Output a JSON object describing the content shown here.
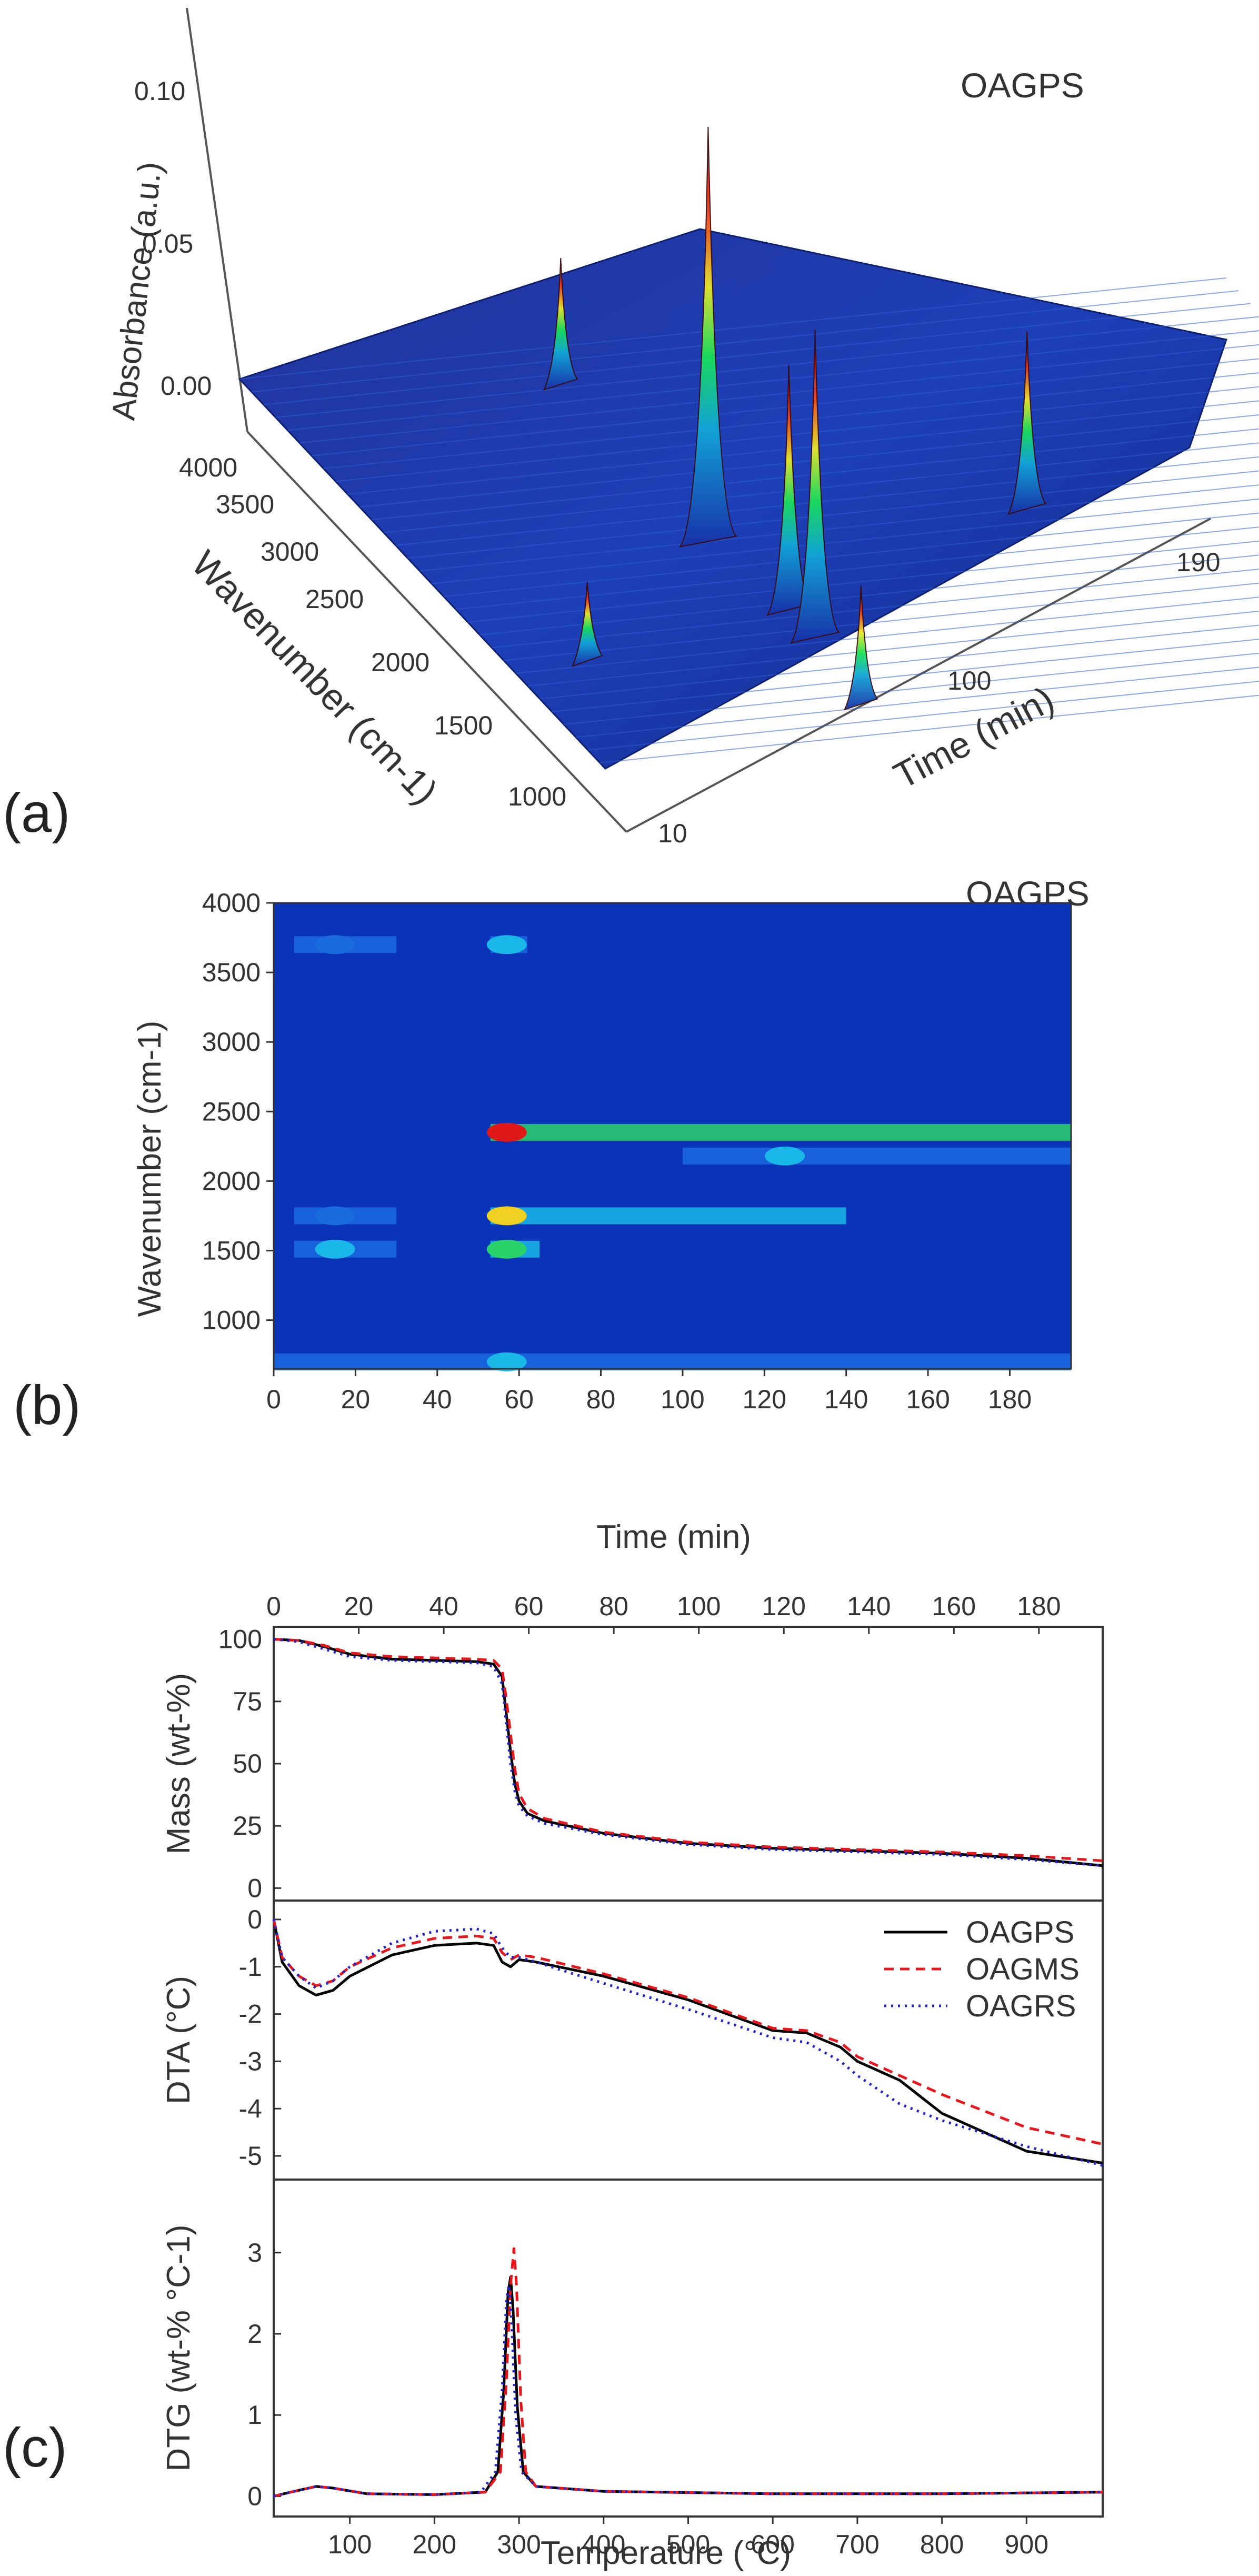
{
  "panels": {
    "a": "(a)",
    "b": "(b)",
    "c": "(c)"
  },
  "chart_data": [
    {
      "id": "a",
      "type": "surface-3d",
      "annotation": "OAGPS",
      "zlabel": "Absorbance (a.u.)",
      "ylabel": "Wavenumber (cm-1)",
      "xlabel": "Time (min)",
      "zticks": [
        "0.10",
        "0.05",
        "0.00"
      ],
      "yticks": [
        "4000",
        "3500",
        "3000",
        "2500",
        "2000",
        "1500",
        "1000"
      ],
      "xticks": [
        "10",
        "100",
        "190"
      ],
      "peaks": [
        {
          "time": 57,
          "wavenumber": 2350,
          "absorbance": 0.105
        },
        {
          "time": 60,
          "wavenumber": 1750,
          "absorbance": 0.062
        },
        {
          "time": 60,
          "wavenumber": 1510,
          "absorbance": 0.078
        },
        {
          "time": 57,
          "wavenumber": 3700,
          "absorbance": 0.032
        },
        {
          "time": 15,
          "wavenumber": 1510,
          "absorbance": 0.02
        },
        {
          "time": 120,
          "wavenumber": 2350,
          "absorbance": 0.045
        },
        {
          "time": 190,
          "wavenumber": 2350,
          "absorbance": 0.058
        },
        {
          "time": 57,
          "wavenumber": 950,
          "absorbance": 0.03
        }
      ]
    },
    {
      "id": "b",
      "type": "heatmap",
      "annotation": "OAGPS",
      "xlabel": "Time (min)",
      "ylabel": "Wavenumber (cm-1)",
      "xlim": [
        0,
        195
      ],
      "ylim": [
        650,
        4000
      ],
      "xticks": [
        "0",
        "20",
        "40",
        "60",
        "80",
        "100",
        "120",
        "140",
        "160",
        "180"
      ],
      "yticks": [
        "4000",
        "3500",
        "3000",
        "2500",
        "2000",
        "1500",
        "1000"
      ],
      "bands": [
        {
          "wavenumber": 2350,
          "t_start": 53,
          "t_end": 195,
          "peak_time": 57,
          "intensity": 1.0
        },
        {
          "wavenumber": 2180,
          "t_start": 100,
          "t_end": 195,
          "peak_time": 125,
          "intensity": 0.35
        },
        {
          "wavenumber": 1750,
          "t_start": 53,
          "t_end": 140,
          "peak_time": 57,
          "intensity": 0.75
        },
        {
          "wavenumber": 1510,
          "t_start": 53,
          "t_end": 65,
          "peak_time": 57,
          "intensity": 0.6
        },
        {
          "wavenumber": 3700,
          "t_start": 53,
          "t_end": 62,
          "peak_time": 57,
          "intensity": 0.45
        },
        {
          "wavenumber": 1510,
          "t_start": 5,
          "t_end": 30,
          "peak_time": 15,
          "intensity": 0.35
        },
        {
          "wavenumber": 1750,
          "t_start": 5,
          "t_end": 30,
          "peak_time": 15,
          "intensity": 0.25
        },
        {
          "wavenumber": 3700,
          "t_start": 5,
          "t_end": 30,
          "peak_time": 15,
          "intensity": 0.2
        },
        {
          "wavenumber": 700,
          "t_start": 0,
          "t_end": 195,
          "peak_time": 57,
          "intensity": 0.3
        }
      ]
    },
    {
      "id": "c",
      "type": "line",
      "top_xlabel": "",
      "top_xlim": [
        0,
        195
      ],
      "top_xticks": [
        "0",
        "20",
        "40",
        "60",
        "80",
        "100",
        "120",
        "140",
        "160",
        "180"
      ],
      "xlabel": "Temperature (°C)",
      "xlim": [
        10,
        990
      ],
      "xticks": [
        "100",
        "200",
        "300",
        "400",
        "500",
        "600",
        "700",
        "800",
        "900"
      ],
      "legend": {
        "position": "top-right",
        "entries": [
          "OAGPS",
          "OAGMS",
          "OAGRS"
        ]
      },
      "series_styles": [
        {
          "name": "OAGPS",
          "color": "#000000",
          "dash": "solid"
        },
        {
          "name": "OAGMS",
          "color": "#e8161c",
          "dash": "dashed"
        },
        {
          "name": "OAGRS",
          "color": "#2222cc",
          "dash": "dotted"
        }
      ],
      "subplots": [
        {
          "ylabel": "Mass (wt-%)",
          "ylim": [
            -5,
            105
          ],
          "yticks": [
            "100",
            "75",
            "50",
            "25",
            "0"
          ],
          "series": [
            {
              "name": "OAGPS",
              "x": [
                10,
                40,
                70,
                100,
                150,
                200,
                250,
                270,
                280,
                285,
                290,
                295,
                300,
                310,
                330,
                400,
                500,
                600,
                700,
                800,
                900,
                990
              ],
              "y": [
                100,
                99.5,
                97,
                94,
                92,
                91.5,
                91,
                90,
                85,
                70,
                55,
                42,
                35,
                30,
                27,
                22,
                18,
                16,
                15,
                14,
                12,
                9
              ]
            },
            {
              "name": "OAGMS",
              "x": [
                10,
                40,
                70,
                100,
                150,
                200,
                250,
                270,
                280,
                285,
                290,
                295,
                300,
                310,
                330,
                400,
                500,
                600,
                700,
                800,
                900,
                990
              ],
              "y": [
                100,
                99.5,
                97.5,
                94.5,
                93,
                92.5,
                92,
                91.5,
                88,
                76,
                62,
                48,
                38,
                32,
                28,
                22.5,
                18.5,
                16.5,
                15.5,
                14.5,
                13,
                11
              ]
            },
            {
              "name": "OAGRS",
              "x": [
                10,
                40,
                70,
                100,
                150,
                200,
                250,
                270,
                280,
                285,
                290,
                295,
                300,
                310,
                330,
                400,
                500,
                600,
                700,
                800,
                900,
                990
              ],
              "y": [
                100,
                99,
                96,
                93,
                91.5,
                91,
                90.5,
                89,
                82,
                66,
                50,
                39,
                33,
                29,
                26,
                21.5,
                17.5,
                15.5,
                14.5,
                13.5,
                11.5,
                9
              ]
            }
          ]
        },
        {
          "ylabel": "DTA (°C)",
          "ylim": [
            -5.5,
            0.4
          ],
          "yticks": [
            "0",
            "-1",
            "-2",
            "-3",
            "-4",
            "-5"
          ],
          "series": [
            {
              "name": "OAGPS",
              "x": [
                10,
                20,
                40,
                60,
                80,
                100,
                150,
                200,
                250,
                270,
                280,
                290,
                300,
                320,
                400,
                500,
                600,
                640,
                680,
                700,
                750,
                800,
                900,
                990
              ],
              "y": [
                0,
                -0.9,
                -1.4,
                -1.6,
                -1.5,
                -1.2,
                -0.75,
                -0.55,
                -0.5,
                -0.55,
                -0.9,
                -1.0,
                -0.85,
                -0.9,
                -1.2,
                -1.7,
                -2.35,
                -2.4,
                -2.7,
                -3.0,
                -3.4,
                -4.1,
                -4.9,
                -5.15
              ]
            },
            {
              "name": "OAGMS",
              "x": [
                10,
                20,
                40,
                60,
                80,
                100,
                150,
                200,
                250,
                270,
                280,
                290,
                300,
                320,
                400,
                500,
                600,
                640,
                680,
                700,
                750,
                800,
                900,
                990
              ],
              "y": [
                0,
                -0.8,
                -1.2,
                -1.4,
                -1.3,
                -1.0,
                -0.6,
                -0.4,
                -0.35,
                -0.4,
                -0.7,
                -0.85,
                -0.75,
                -0.8,
                -1.15,
                -1.65,
                -2.3,
                -2.35,
                -2.6,
                -2.9,
                -3.3,
                -3.7,
                -4.4,
                -4.75
              ]
            },
            {
              "name": "OAGRS",
              "x": [
                10,
                20,
                40,
                60,
                80,
                100,
                150,
                200,
                250,
                270,
                280,
                290,
                300,
                320,
                400,
                500,
                600,
                640,
                680,
                700,
                750,
                800,
                900,
                990
              ],
              "y": [
                0,
                -0.8,
                -1.2,
                -1.45,
                -1.3,
                -1.0,
                -0.5,
                -0.25,
                -0.2,
                -0.3,
                -0.6,
                -0.8,
                -0.8,
                -0.9,
                -1.35,
                -1.9,
                -2.5,
                -2.6,
                -3.0,
                -3.3,
                -3.9,
                -4.25,
                -4.8,
                -5.2
              ]
            }
          ]
        },
        {
          "ylabel": "DTG (wt-% °C-1)",
          "ylim": [
            -0.25,
            3.9
          ],
          "yticks": [
            "0",
            "1",
            "2",
            "3"
          ],
          "series": [
            {
              "name": "OAGPS",
              "x": [
                10,
                30,
                60,
                80,
                120,
                200,
                260,
                275,
                282,
                287,
                290,
                293,
                298,
                305,
                320,
                400,
                600,
                800,
                990
              ],
              "y": [
                0,
                0.05,
                0.12,
                0.1,
                0.03,
                0.02,
                0.05,
                0.3,
                1.3,
                2.5,
                2.7,
                2.3,
                1.1,
                0.3,
                0.12,
                0.06,
                0.03,
                0.03,
                0.05
              ]
            },
            {
              "name": "OAGMS",
              "x": [
                10,
                30,
                60,
                80,
                120,
                200,
                260,
                278,
                285,
                290,
                294,
                297,
                302,
                308,
                320,
                400,
                600,
                800,
                990
              ],
              "y": [
                0,
                0.05,
                0.12,
                0.1,
                0.03,
                0.02,
                0.05,
                0.3,
                1.4,
                2.6,
                3.05,
                2.6,
                1.2,
                0.3,
                0.12,
                0.06,
                0.03,
                0.03,
                0.05
              ]
            },
            {
              "name": "OAGRS",
              "x": [
                10,
                30,
                60,
                80,
                120,
                200,
                255,
                272,
                280,
                285,
                288,
                291,
                296,
                303,
                320,
                400,
                600,
                800,
                990
              ],
              "y": [
                0,
                0.05,
                0.12,
                0.1,
                0.03,
                0.02,
                0.05,
                0.3,
                1.3,
                2.4,
                2.6,
                2.2,
                1.0,
                0.3,
                0.12,
                0.06,
                0.03,
                0.03,
                0.05
              ]
            }
          ]
        }
      ]
    }
  ]
}
